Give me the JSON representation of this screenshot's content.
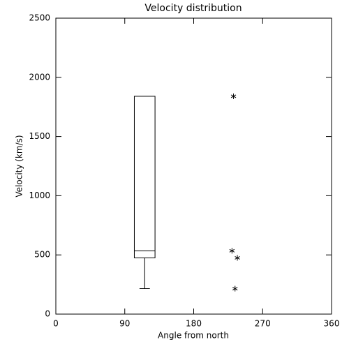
{
  "chart_data": {
    "type": "box",
    "title": "Velocity distribution",
    "xlabel": "Angle from north",
    "ylabel": "Velocity (km/s)",
    "xlim": [
      0,
      360
    ],
    "xticks": [
      0,
      90,
      180,
      270,
      360
    ],
    "ylim": [
      0,
      2500
    ],
    "yticks": [
      0,
      500,
      1000,
      1500,
      2000,
      2500
    ],
    "box": {
      "x": 116,
      "width": 27,
      "min": 215,
      "q1": 475,
      "median": 535,
      "q3": 1840,
      "max": 1840
    },
    "points": {
      "x": [
        232,
        230,
        237,
        234
      ],
      "values": [
        1840,
        535,
        475,
        215
      ]
    }
  }
}
